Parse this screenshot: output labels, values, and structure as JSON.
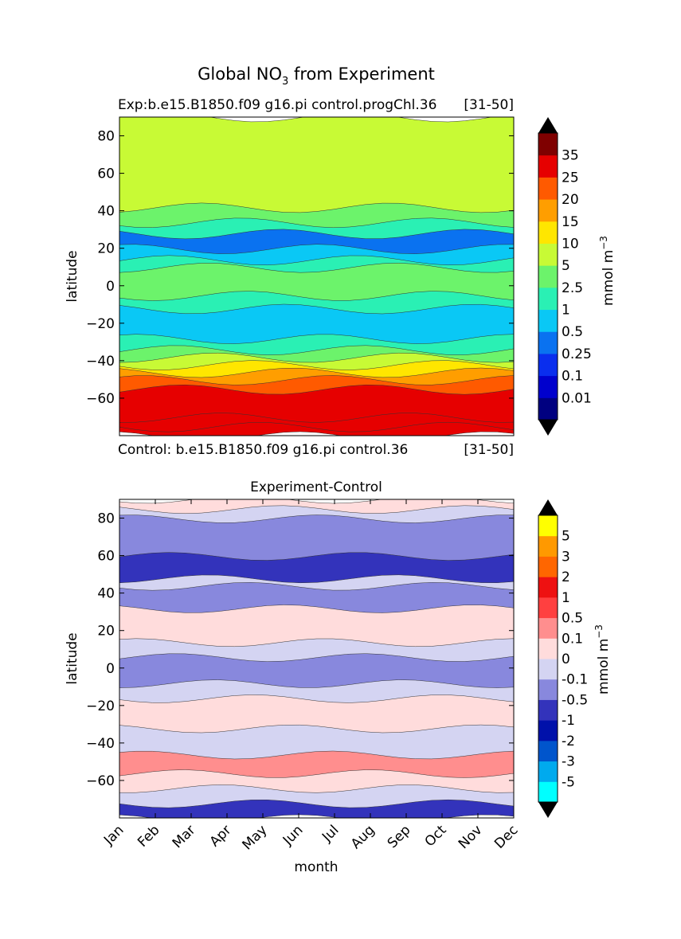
{
  "figure": {
    "title_main": "Global NO",
    "title_sub": "3",
    "title_rest": " from Experiment"
  },
  "chart_data": [
    {
      "type": "heatmap",
      "panel": "top",
      "subtitle_left": "Exp:b.e15.B1850.f09 g16.pi control.progChl.36",
      "subtitle_right": "[31-50]",
      "footer_left": "Control: b.e15.B1850.f09 g16.pi control.36",
      "footer_right": "[31-50]",
      "ylabel": "latitude",
      "xlabel": "",
      "ylim": [
        -80,
        90
      ],
      "xlim": [
        0,
        11
      ],
      "yticks": [
        80,
        60,
        40,
        20,
        0,
        -20,
        -40,
        -60
      ],
      "ytick_labels": [
        "80",
        "60",
        "40",
        "20",
        "0",
        "−20",
        "−40",
        "−60"
      ],
      "colorbar": {
        "label": "mmol m",
        "label_sup": "−3",
        "levels": [
          "35",
          "25",
          "20",
          "15",
          "10",
          "5",
          "2.5",
          "1",
          "0.5",
          "0.25",
          "0.1",
          "0.01"
        ],
        "colors": [
          "#000080",
          "#0000cd",
          "#0a2eee",
          "#0a72f0",
          "#0ac8f5",
          "#2af0b4",
          "#6cf36b",
          "#c8fa35",
          "#ffe600",
          "#ff9e00",
          "#ff5a00",
          "#e60000",
          "#7f0000"
        ],
        "extend": "both"
      },
      "bands_by_latitude": [
        {
          "lat_from": -80,
          "lat_to": -75,
          "level_index": 11
        },
        {
          "lat_from": -75,
          "lat_to": -70,
          "level_index": 11
        },
        {
          "lat_from": -70,
          "lat_to": -55,
          "level_index": 11
        },
        {
          "lat_from": -55,
          "lat_to": -50,
          "level_index": 10
        },
        {
          "lat_from": -50,
          "lat_to": -46,
          "level_index": 9
        },
        {
          "lat_from": -46,
          "lat_to": -42,
          "level_index": 8
        },
        {
          "lat_from": -42,
          "lat_to": -38,
          "level_index": 7
        },
        {
          "lat_from": -38,
          "lat_to": -34,
          "level_index": 6
        },
        {
          "lat_from": -34,
          "lat_to": -28,
          "level_index": 5
        },
        {
          "lat_from": -28,
          "lat_to": -12,
          "level_index": 4
        },
        {
          "lat_from": -12,
          "lat_to": -5,
          "level_index": 5
        },
        {
          "lat_from": -5,
          "lat_to": 10,
          "level_index": 6
        },
        {
          "lat_from": 10,
          "lat_to": 14,
          "level_index": 5
        },
        {
          "lat_from": 14,
          "lat_to": 20,
          "level_index": 4
        },
        {
          "lat_from": 20,
          "lat_to": 28,
          "level_index": 3
        },
        {
          "lat_from": 28,
          "lat_to": 34,
          "level_index": 5
        },
        {
          "lat_from": 34,
          "lat_to": 42,
          "level_index": 6
        },
        {
          "lat_from": 42,
          "lat_to": 90,
          "level_index": 7
        }
      ]
    },
    {
      "type": "heatmap",
      "panel": "bottom",
      "title": "Experiment-Control",
      "ylabel": "latitude",
      "xlabel": "month",
      "ylim": [
        -80,
        90
      ],
      "xlim": [
        0,
        11
      ],
      "categories": [
        "Jan",
        "Feb",
        "Mar",
        "Apr",
        "May",
        "Jun",
        "Jul",
        "Aug",
        "Sep",
        "Oct",
        "Nov",
        "Dec"
      ],
      "yticks": [
        80,
        60,
        40,
        20,
        0,
        -20,
        -40,
        -60
      ],
      "ytick_labels": [
        "80",
        "60",
        "40",
        "20",
        "0",
        "−20",
        "−40",
        "−60"
      ],
      "colorbar": {
        "label": "mmol m",
        "label_sup": "−3",
        "levels": [
          "5",
          "3",
          "2",
          "1",
          "0.5",
          "0.1",
          "0",
          "-0.1",
          "-0.5",
          "-1",
          "-2",
          "-3",
          "-5"
        ],
        "colors": [
          "#00ffff",
          "#00aaee",
          "#0055cc",
          "#0011aa",
          "#3333bb",
          "#8888dd",
          "#d4d4f2",
          "#ffdcdc",
          "#ff8e8e",
          "#ff4040",
          "#ee1111",
          "#ff6600",
          "#ff9900",
          "#ffff00"
        ],
        "extend": "both"
      },
      "bands_by_latitude": [
        {
          "lat_from": -80,
          "lat_to": -72,
          "level_index": 4
        },
        {
          "lat_from": -72,
          "lat_to": -64,
          "level_index": 6
        },
        {
          "lat_from": -64,
          "lat_to": -56,
          "level_index": 7
        },
        {
          "lat_from": -56,
          "lat_to": -46,
          "level_index": 8
        },
        {
          "lat_from": -46,
          "lat_to": -32,
          "level_index": 6
        },
        {
          "lat_from": -32,
          "lat_to": -16,
          "level_index": 7
        },
        {
          "lat_from": -16,
          "lat_to": -8,
          "level_index": 6
        },
        {
          "lat_from": -8,
          "lat_to": 6,
          "level_index": 5
        },
        {
          "lat_from": 6,
          "lat_to": 14,
          "level_index": 6
        },
        {
          "lat_from": 14,
          "lat_to": 32,
          "level_index": 7
        },
        {
          "lat_from": 32,
          "lat_to": 44,
          "level_index": 5
        },
        {
          "lat_from": 44,
          "lat_to": 48,
          "level_index": 6
        },
        {
          "lat_from": 48,
          "lat_to": 60,
          "level_index": 4
        },
        {
          "lat_from": 60,
          "lat_to": 80,
          "level_index": 5
        },
        {
          "lat_from": 80,
          "lat_to": 85,
          "level_index": 6
        },
        {
          "lat_from": 85,
          "lat_to": 90,
          "level_index": 7
        }
      ]
    }
  ]
}
